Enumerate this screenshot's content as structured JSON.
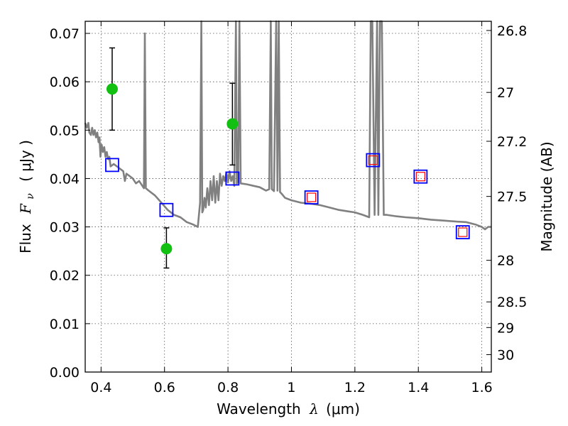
{
  "chart_data": {
    "type": "scatter",
    "xlabel_prefix": "Wavelength",
    "xlabel_symbol": "λ",
    "xlabel_unit": "(μm)",
    "ylabel_prefix": "Flux",
    "ylabel_symbol": "F",
    "ylabel_subscript": "ν",
    "ylabel_unit": "( μJy )",
    "ylabel_right": "Magnitude (AB)",
    "xlim": [
      0.35,
      1.63
    ],
    "ylim": [
      0.0,
      0.0725
    ],
    "grid": true,
    "x_ticks": [
      {
        "value": 0.4,
        "label": "0.4"
      },
      {
        "value": 0.6,
        "label": "0.6"
      },
      {
        "value": 0.8,
        "label": "0.8"
      },
      {
        "value": 1.0,
        "label": "1"
      },
      {
        "value": 1.2,
        "label": "1.2"
      },
      {
        "value": 1.4,
        "label": "1.4"
      },
      {
        "value": 1.6,
        "label": "1.6"
      }
    ],
    "y_ticks": [
      {
        "value": 0.0,
        "label": "0.00"
      },
      {
        "value": 0.01,
        "label": "0.01"
      },
      {
        "value": 0.02,
        "label": "0.02"
      },
      {
        "value": 0.03,
        "label": "0.03"
      },
      {
        "value": 0.04,
        "label": "0.04"
      },
      {
        "value": 0.05,
        "label": "0.05"
      },
      {
        "value": 0.06,
        "label": "0.06"
      },
      {
        "value": 0.07,
        "label": "0.07"
      }
    ],
    "right_ticks": [
      {
        "flux": 0.0706,
        "label": "26.8"
      },
      {
        "flux": 0.0578,
        "label": "27"
      },
      {
        "flux": 0.0477,
        "label": "27.2"
      },
      {
        "flux": 0.0363,
        "label": "27.5"
      },
      {
        "flux": 0.0231,
        "label": "28"
      },
      {
        "flux": 0.0145,
        "label": "28.5"
      },
      {
        "flux": 0.0092,
        "label": "29"
      },
      {
        "flux": 0.0036,
        "label": "30"
      }
    ],
    "series": [
      {
        "kind": "model",
        "color": "#808080",
        "points": [
          [
            0.35,
            0.0515
          ],
          [
            0.355,
            0.0505
          ],
          [
            0.36,
            0.0515
          ],
          [
            0.363,
            0.0495
          ],
          [
            0.368,
            0.049
          ],
          [
            0.372,
            0.0505
          ],
          [
            0.376,
            0.049
          ],
          [
            0.38,
            0.05
          ],
          [
            0.384,
            0.0485
          ],
          [
            0.388,
            0.0495
          ],
          [
            0.392,
            0.0475
          ],
          [
            0.395,
            0.0485
          ],
          [
            0.398,
            0.0445
          ],
          [
            0.402,
            0.047
          ],
          [
            0.406,
            0.0455
          ],
          [
            0.41,
            0.0465
          ],
          [
            0.414,
            0.0445
          ],
          [
            0.418,
            0.0455
          ],
          [
            0.422,
            0.044
          ],
          [
            0.426,
            0.0445
          ],
          [
            0.43,
            0.0425
          ],
          [
            0.44,
            0.043
          ],
          [
            0.45,
            0.0425
          ],
          [
            0.46,
            0.042
          ],
          [
            0.47,
            0.0415
          ],
          [
            0.475,
            0.0395
          ],
          [
            0.48,
            0.041
          ],
          [
            0.49,
            0.0405
          ],
          [
            0.5,
            0.04
          ],
          [
            0.51,
            0.039
          ],
          [
            0.52,
            0.0395
          ],
          [
            0.53,
            0.0385
          ],
          [
            0.535,
            0.038
          ],
          [
            0.538,
            0.07
          ],
          [
            0.541,
            0.038
          ],
          [
            0.55,
            0.0375
          ],
          [
            0.57,
            0.0365
          ],
          [
            0.59,
            0.035
          ],
          [
            0.61,
            0.0335
          ],
          [
            0.63,
            0.0325
          ],
          [
            0.65,
            0.032
          ],
          [
            0.67,
            0.031
          ],
          [
            0.69,
            0.0305
          ],
          [
            0.705,
            0.03
          ],
          [
            0.712,
            0.035
          ],
          [
            0.716,
            0.0725
          ],
          [
            0.719,
            0.033
          ],
          [
            0.722,
            0.0335
          ],
          [
            0.726,
            0.036
          ],
          [
            0.73,
            0.034
          ],
          [
            0.735,
            0.038
          ],
          [
            0.74,
            0.0345
          ],
          [
            0.745,
            0.0395
          ],
          [
            0.75,
            0.0355
          ],
          [
            0.755,
            0.0405
          ],
          [
            0.76,
            0.035
          ],
          [
            0.765,
            0.0395
          ],
          [
            0.77,
            0.0355
          ],
          [
            0.775,
            0.041
          ],
          [
            0.78,
            0.0385
          ],
          [
            0.785,
            0.0405
          ],
          [
            0.79,
            0.0395
          ],
          [
            0.795,
            0.0412
          ],
          [
            0.8,
            0.0392
          ],
          [
            0.805,
            0.0415
          ],
          [
            0.81,
            0.0395
          ],
          [
            0.815,
            0.0405
          ],
          [
            0.82,
            0.0385
          ],
          [
            0.825,
            0.0725
          ],
          [
            0.828,
            0.039
          ],
          [
            0.832,
            0.0395
          ],
          [
            0.836,
            0.0725
          ],
          [
            0.84,
            0.039
          ],
          [
            0.86,
            0.0388
          ],
          [
            0.88,
            0.0385
          ],
          [
            0.9,
            0.0382
          ],
          [
            0.92,
            0.0375
          ],
          [
            0.93,
            0.0378
          ],
          [
            0.935,
            0.0725
          ],
          [
            0.938,
            0.0378
          ],
          [
            0.945,
            0.0374
          ],
          [
            0.952,
            0.0725
          ],
          [
            0.956,
            0.0375
          ],
          [
            0.96,
            0.0725
          ],
          [
            0.964,
            0.0372
          ],
          [
            0.97,
            0.0368
          ],
          [
            0.98,
            0.036
          ],
          [
            1.0,
            0.0355
          ],
          [
            1.03,
            0.035
          ],
          [
            1.06,
            0.0348
          ],
          [
            1.09,
            0.0345
          ],
          [
            1.12,
            0.034
          ],
          [
            1.15,
            0.0335
          ],
          [
            1.18,
            0.0332
          ],
          [
            1.2,
            0.033
          ],
          [
            1.225,
            0.0325
          ],
          [
            1.245,
            0.032
          ],
          [
            1.25,
            0.0725
          ],
          [
            1.255,
            0.0725
          ],
          [
            1.262,
            0.0325
          ],
          [
            1.27,
            0.0725
          ],
          [
            1.274,
            0.0325
          ],
          [
            1.279,
            0.0725
          ],
          [
            1.285,
            0.0725
          ],
          [
            1.291,
            0.0325
          ],
          [
            1.3,
            0.0325
          ],
          [
            1.33,
            0.0322
          ],
          [
            1.36,
            0.032
          ],
          [
            1.4,
            0.0318
          ],
          [
            1.44,
            0.0315
          ],
          [
            1.48,
            0.0313
          ],
          [
            1.52,
            0.0311
          ],
          [
            1.55,
            0.031
          ],
          [
            1.58,
            0.0305
          ],
          [
            1.6,
            0.03
          ],
          [
            1.61,
            0.0295
          ],
          [
            1.62,
            0.03
          ],
          [
            1.63,
            0.03
          ]
        ]
      },
      {
        "kind": "observed",
        "color": "#11c011",
        "points": [
          {
            "x": 0.435,
            "y": 0.0585,
            "err_low": 0.05,
            "err_high": 0.067
          },
          {
            "x": 0.606,
            "y": 0.0255,
            "err_low": 0.0215,
            "err_high": 0.0298
          },
          {
            "x": 0.814,
            "y": 0.0513,
            "err_low": 0.0428,
            "err_high": 0.0597
          }
        ]
      },
      {
        "kind": "model-photometry",
        "color": "#0000ff",
        "points": [
          {
            "x": 0.435,
            "y": 0.0428
          },
          {
            "x": 0.606,
            "y": 0.0335
          },
          {
            "x": 0.814,
            "y": 0.04
          },
          {
            "x": 1.063,
            "y": 0.0361
          },
          {
            "x": 1.257,
            "y": 0.0438
          },
          {
            "x": 1.407,
            "y": 0.0404
          },
          {
            "x": 1.54,
            "y": 0.0289
          }
        ]
      },
      {
        "kind": "model-photometry-inner",
        "color": "#ff0000",
        "points": [
          {
            "x": 1.063,
            "y": 0.0361
          },
          {
            "x": 1.257,
            "y": 0.0438
          },
          {
            "x": 1.407,
            "y": 0.0404
          },
          {
            "x": 1.54,
            "y": 0.0289
          }
        ]
      }
    ]
  }
}
